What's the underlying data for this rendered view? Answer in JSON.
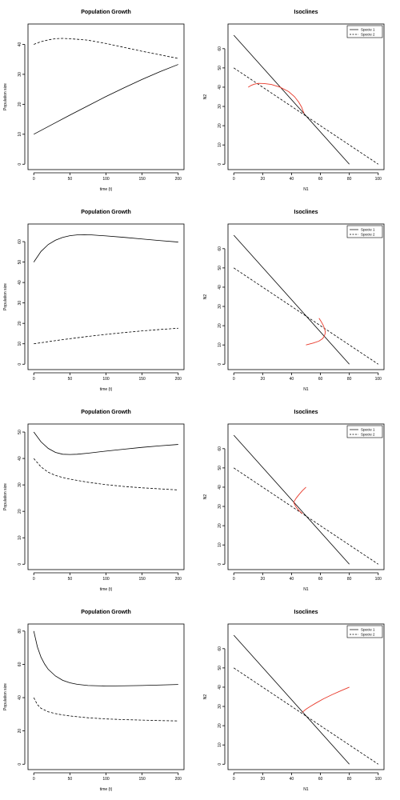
{
  "chart_data": [
    {
      "type": "line",
      "title": "Population Growth",
      "xlabel": "time (t)",
      "ylabel": "Population size",
      "xlim": [
        0,
        200
      ],
      "ylim": [
        0,
        45
      ],
      "xticks": [
        0,
        50,
        100,
        150,
        200
      ],
      "yticks": [
        0,
        10,
        20,
        30,
        40
      ],
      "series": [
        {
          "style": "solid",
          "color": "#000000",
          "x": [
            0,
            25,
            50,
            75,
            100,
            125,
            150,
            175,
            200
          ],
          "y": [
            10,
            13.2,
            16.4,
            19.5,
            22.6,
            25.5,
            28.3,
            30.9,
            33.3
          ]
        },
        {
          "style": "dashed",
          "color": "#000000",
          "x": [
            0,
            10,
            20,
            30,
            40,
            50,
            75,
            100,
            125,
            150,
            175,
            200
          ],
          "y": [
            40,
            40.9,
            41.5,
            41.9,
            42,
            41.9,
            41.4,
            40.3,
            39,
            37.7,
            36.5,
            35.3
          ]
        }
      ]
    },
    {
      "type": "line",
      "title": "Isoclines",
      "xlabel": "N1",
      "ylabel": "N2",
      "xlim": [
        0,
        100
      ],
      "ylim": [
        0,
        70
      ],
      "xticks": [
        0,
        20,
        40,
        60,
        80,
        100
      ],
      "yticks": [
        0,
        10,
        20,
        30,
        40,
        50,
        60
      ],
      "legend": {
        "position": "top-right",
        "entries": [
          {
            "label": "Specie 1",
            "style": "solid"
          },
          {
            "label": "Specie 2",
            "style": "dashed"
          }
        ]
      },
      "series": [
        {
          "style": "solid",
          "color": "#000000",
          "x": [
            0,
            80
          ],
          "y": [
            67,
            0
          ]
        },
        {
          "style": "dashed",
          "color": "#000000",
          "x": [
            0,
            100
          ],
          "y": [
            50,
            0
          ]
        },
        {
          "style": "solid",
          "color": "#e8392a",
          "x": [
            10,
            12,
            14,
            17,
            21,
            26,
            32,
            38,
            42,
            45,
            47,
            48,
            48.7
          ],
          "y": [
            40,
            40.9,
            41.5,
            42,
            41.9,
            41.4,
            40,
            37.7,
            35.1,
            32.2,
            29.6,
            27.5,
            26.4
          ]
        }
      ]
    },
    {
      "type": "line",
      "title": "Population Growth",
      "xlabel": "time (t)",
      "ylabel": "Population size",
      "xlim": [
        0,
        200
      ],
      "ylim": [
        0,
        66
      ],
      "xticks": [
        0,
        50,
        100,
        150,
        200
      ],
      "yticks": [
        0,
        10,
        20,
        30,
        40,
        50,
        60
      ],
      "series": [
        {
          "style": "solid",
          "color": "#000000",
          "x": [
            0,
            10,
            20,
            30,
            40,
            50,
            60,
            70,
            80,
            100,
            125,
            150,
            175,
            200
          ],
          "y": [
            50,
            55.2,
            58.6,
            60.7,
            62.1,
            62.9,
            63.3,
            63.4,
            63.3,
            62.8,
            62.1,
            61.3,
            60.5,
            59.8
          ]
        },
        {
          "style": "dashed",
          "color": "#000000",
          "x": [
            0,
            25,
            50,
            75,
            100,
            125,
            150,
            175,
            200
          ],
          "y": [
            10,
            11.3,
            12.5,
            13.6,
            14.6,
            15.5,
            16.3,
            17,
            17.6
          ]
        }
      ]
    },
    {
      "type": "line",
      "title": "Isoclines",
      "xlabel": "N1",
      "ylabel": "N2",
      "xlim": [
        0,
        100
      ],
      "ylim": [
        0,
        70
      ],
      "xticks": [
        0,
        20,
        40,
        60,
        80,
        100
      ],
      "yticks": [
        0,
        10,
        20,
        30,
        40,
        50,
        60
      ],
      "legend": {
        "position": "top-right",
        "entries": [
          {
            "label": "Specie 1",
            "style": "solid"
          },
          {
            "label": "Specie 2",
            "style": "dashed"
          }
        ]
      },
      "series": [
        {
          "style": "solid",
          "color": "#000000",
          "x": [
            0,
            80
          ],
          "y": [
            67,
            0
          ]
        },
        {
          "style": "dashed",
          "color": "#000000",
          "x": [
            0,
            100
          ],
          "y": [
            50,
            0
          ]
        },
        {
          "style": "solid",
          "color": "#e8392a",
          "x": [
            50,
            55,
            59,
            61.5,
            62.7,
            63.2,
            63.3,
            62.8,
            61.8,
            60.3,
            59
          ],
          "y": [
            10,
            11,
            12,
            13.3,
            14.6,
            15.8,
            17,
            18.6,
            20.4,
            22.4,
            23.9
          ]
        }
      ]
    },
    {
      "type": "line",
      "title": "Population Growth",
      "xlabel": "time (t)",
      "ylabel": "Population size",
      "xlim": [
        0,
        200
      ],
      "ylim": [
        0,
        51
      ],
      "xticks": [
        0,
        50,
        100,
        150,
        200
      ],
      "yticks": [
        0,
        10,
        20,
        30,
        40,
        50
      ],
      "series": [
        {
          "style": "solid",
          "color": "#000000",
          "x": [
            0,
            10,
            20,
            30,
            40,
            50,
            60,
            75,
            100,
            125,
            150,
            175,
            200
          ],
          "y": [
            50,
            46.3,
            43.8,
            42.3,
            41.6,
            41.5,
            41.6,
            42,
            42.8,
            43.5,
            44.2,
            44.8,
            45.3
          ]
        },
        {
          "style": "dashed",
          "color": "#000000",
          "x": [
            0,
            10,
            20,
            30,
            40,
            50,
            75,
            100,
            125,
            150,
            175,
            200
          ],
          "y": [
            40,
            36.8,
            34.8,
            33.6,
            32.8,
            32.2,
            31,
            30.1,
            29.4,
            28.9,
            28.5,
            28.1
          ]
        }
      ]
    },
    {
      "type": "line",
      "title": "Isoclines",
      "xlabel": "N1",
      "ylabel": "N2",
      "xlim": [
        0,
        100
      ],
      "ylim": [
        0,
        70
      ],
      "xticks": [
        0,
        20,
        40,
        60,
        80,
        100
      ],
      "yticks": [
        0,
        10,
        20,
        30,
        40,
        50,
        60
      ],
      "legend": {
        "position": "top-right",
        "entries": [
          {
            "label": "Specie 1",
            "style": "solid"
          },
          {
            "label": "Specie 2",
            "style": "dashed"
          }
        ]
      },
      "series": [
        {
          "style": "solid",
          "color": "#000000",
          "x": [
            0,
            80
          ],
          "y": [
            67,
            0
          ]
        },
        {
          "style": "dashed",
          "color": "#000000",
          "x": [
            0,
            100
          ],
          "y": [
            50,
            0
          ]
        },
        {
          "style": "solid",
          "color": "#e8392a",
          "x": [
            50,
            47.5,
            45,
            43.3,
            42.2,
            41.7,
            41.6,
            42.2,
            43.4,
            45.5,
            47.6
          ],
          "y": [
            40,
            38.2,
            36,
            34.4,
            33.1,
            32.4,
            31.9,
            30.9,
            29.4,
            27.6,
            26.2
          ]
        }
      ]
    },
    {
      "type": "line",
      "title": "Population Growth",
      "xlabel": "time (t)",
      "ylabel": "Population size",
      "xlim": [
        0,
        200
      ],
      "ylim": [
        0,
        81
      ],
      "xticks": [
        0,
        50,
        100,
        150,
        200
      ],
      "yticks": [
        0,
        20,
        40,
        60,
        80
      ],
      "series": [
        {
          "style": "solid",
          "color": "#000000",
          "x": [
            0,
            5,
            10,
            15,
            20,
            30,
            40,
            50,
            60,
            75,
            100,
            125,
            150,
            175,
            200
          ],
          "y": [
            80,
            70.5,
            64.3,
            60.2,
            57,
            53,
            50.4,
            48.9,
            48,
            47.3,
            47,
            47.1,
            47.3,
            47.6,
            47.9
          ]
        },
        {
          "style": "dashed",
          "color": "#000000",
          "x": [
            0,
            5,
            10,
            20,
            30,
            40,
            50,
            75,
            100,
            125,
            150,
            175,
            200
          ],
          "y": [
            40,
            35.8,
            33.6,
            31.5,
            30.4,
            29.6,
            29,
            27.9,
            27.2,
            26.8,
            26.5,
            26.2,
            26
          ]
        }
      ]
    },
    {
      "type": "line",
      "title": "Isoclines",
      "xlabel": "N1",
      "ylabel": "N2",
      "xlim": [
        0,
        100
      ],
      "ylim": [
        0,
        70
      ],
      "xticks": [
        0,
        20,
        40,
        60,
        80,
        100
      ],
      "yticks": [
        0,
        10,
        20,
        30,
        40,
        50,
        60
      ],
      "legend": {
        "position": "top-right",
        "entries": [
          {
            "label": "Specie 1",
            "style": "solid"
          },
          {
            "label": "Specie 2",
            "style": "dashed"
          }
        ]
      },
      "series": [
        {
          "style": "solid",
          "color": "#000000",
          "x": [
            0,
            80
          ],
          "y": [
            67,
            0
          ]
        },
        {
          "style": "dashed",
          "color": "#000000",
          "x": [
            0,
            100
          ],
          "y": [
            50,
            0
          ]
        },
        {
          "style": "solid",
          "color": "#e8392a",
          "x": [
            80,
            74,
            68,
            62,
            57,
            53,
            50.5,
            48.9,
            48,
            47.5
          ],
          "y": [
            40,
            38.1,
            36.1,
            33.9,
            31.8,
            30,
            28.8,
            27.9,
            27.3,
            26.9
          ]
        }
      ]
    }
  ]
}
